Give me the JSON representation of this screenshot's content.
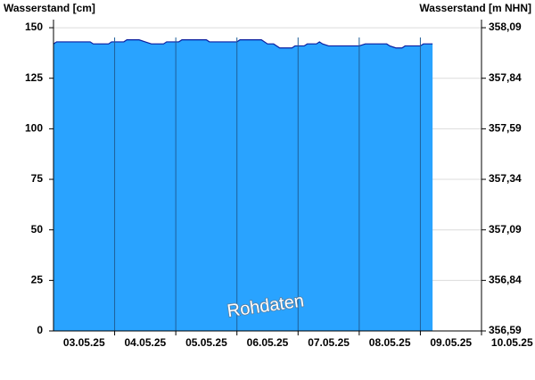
{
  "chart_data": {
    "type": "area",
    "ylabel": "Wasserstand [cm]",
    "y2label": "Wasserstand [m NHN]",
    "annotation": "Rohdaten",
    "color": "#29a3ff",
    "line_color": "#0a1ea0",
    "grid": true,
    "xlim": [
      0,
      7
    ],
    "xticks": [
      {
        "value": 0.5,
        "label": "03.05.25"
      },
      {
        "value": 1.5,
        "label": "04.05.25"
      },
      {
        "value": 2.5,
        "label": "05.05.25"
      },
      {
        "value": 3.5,
        "label": "06.05.25"
      },
      {
        "value": 4.5,
        "label": "07.05.25"
      },
      {
        "value": 5.5,
        "label": "08.05.25"
      },
      {
        "value": 6.5,
        "label": "09.05.25"
      },
      {
        "value": 7.5,
        "label": "10.05.25"
      }
    ],
    "ylim": [
      0,
      154
    ],
    "yticks": [
      0,
      25,
      50,
      75,
      100,
      125,
      150
    ],
    "y2lim": [
      356.59,
      358.13
    ],
    "y2ticks": [
      {
        "value": 356.59,
        "label": "356,59"
      },
      {
        "value": 356.84,
        "label": "356,84"
      },
      {
        "value": 357.09,
        "label": "357,09"
      },
      {
        "value": 357.34,
        "label": "357,34"
      },
      {
        "value": 357.59,
        "label": "357,59"
      },
      {
        "value": 357.84,
        "label": "357,84"
      },
      {
        "value": 358.09,
        "label": "358,09"
      }
    ],
    "x": [
      0,
      0.05,
      0.6,
      0.65,
      0.9,
      0.95,
      1.15,
      1.2,
      1.4,
      1.5,
      1.6,
      1.8,
      1.85,
      2.05,
      2.1,
      2.5,
      2.55,
      3.0,
      3.05,
      3.4,
      3.5,
      3.6,
      3.7,
      3.9,
      3.95,
      4.1,
      4.15,
      4.3,
      4.35,
      4.4,
      4.5,
      5.0,
      5.1,
      5.45,
      5.5,
      5.6,
      5.7,
      5.75,
      6.0,
      6.05,
      6.2
    ],
    "values": [
      142,
      143,
      143,
      142,
      142,
      143,
      143,
      144,
      144,
      143,
      142,
      142,
      143,
      143,
      144,
      144,
      143,
      143,
      144,
      144,
      142,
      142,
      140,
      140,
      141,
      141,
      142,
      142,
      143,
      142,
      141,
      141,
      142,
      142,
      141,
      140,
      140,
      141,
      141,
      142,
      142
    ]
  }
}
